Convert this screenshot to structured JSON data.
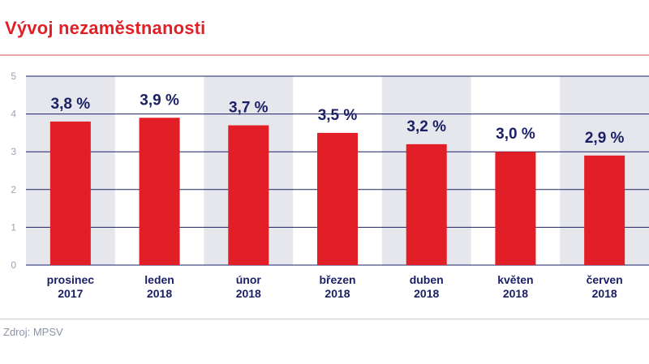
{
  "header": {
    "title": "Vývoj nezaměstnanosti"
  },
  "footer": {
    "source": "Zdroj: MPSV"
  },
  "colors": {
    "title": "#e21f26",
    "bar": "#e21f26",
    "band": "#e6e7ec",
    "axis": "#1b2066",
    "label": "#1b2066"
  },
  "chart_data": {
    "type": "bar",
    "title": "Vývoj nezaměstnanosti",
    "xlabel": "",
    "ylabel": "",
    "ylim": [
      0,
      5
    ],
    "yticks": [
      0,
      1,
      2,
      3,
      4,
      5
    ],
    "grid": true,
    "categories": [
      {
        "month": "prosinec",
        "year": "2017"
      },
      {
        "month": "leden",
        "year": "2018"
      },
      {
        "month": "únor",
        "year": "2018"
      },
      {
        "month": "březen",
        "year": "2018"
      },
      {
        "month": "duben",
        "year": "2018"
      },
      {
        "month": "květen",
        "year": "2018"
      },
      {
        "month": "červen",
        "year": "2018"
      }
    ],
    "values": [
      3.8,
      3.9,
      3.7,
      3.5,
      3.2,
      3.0,
      2.9
    ],
    "value_labels": [
      "3,8 %",
      "3,9 %",
      "3,7 %",
      "3,5 %",
      "3,2 %",
      "3,0 %",
      "2,9 %"
    ],
    "shaded_columns": [
      0,
      2,
      4,
      6
    ]
  }
}
